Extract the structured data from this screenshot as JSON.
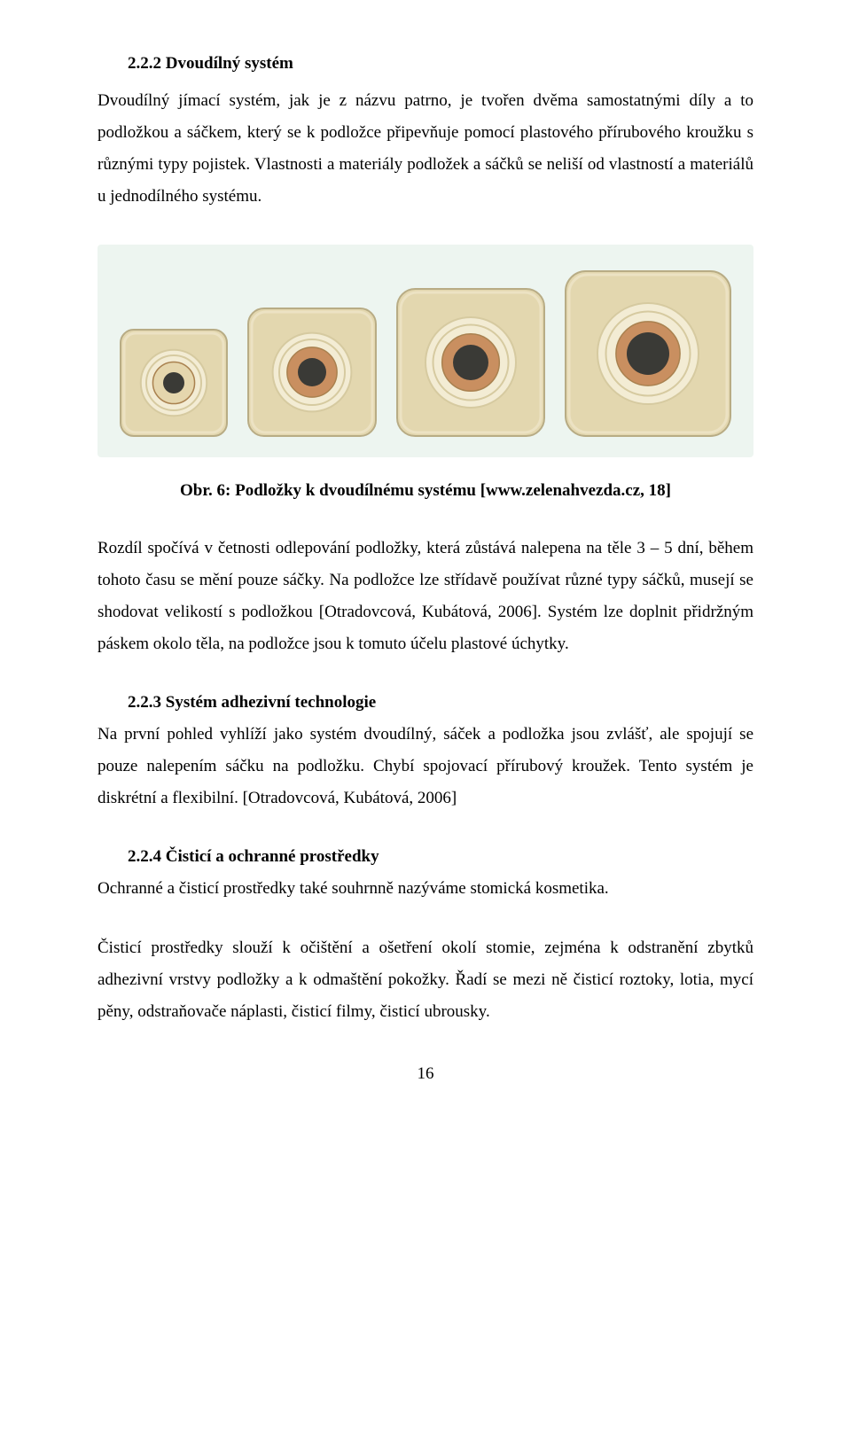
{
  "section_2_2_2": {
    "heading": "2.2.2   Dvoudílný systém",
    "para1": "Dvoudílný jímací systém, jak je z názvu patrno, je tvořen dvěma samostatnými díly a to podložkou a sáčkem, který se k podložce připevňuje pomocí plastového přírubového kroužku s různými typy pojistek. Vlastnosti a materiály podložek a sáčků se neliší od vlastností a materiálů u jednodílného systému."
  },
  "figure": {
    "caption": "Obr. 6: Podložky k dvoudílnému systému [www.zelenahvezda.cz, 18]",
    "background": "#edf5f0",
    "plate_fill": "#e3d7af",
    "plate_stroke": "#b8ac85",
    "ring_fill": "#f3ecd4",
    "ring_stroke": "#d6caa0",
    "center_fill_flat": "#e5d6ad",
    "center_fill_convex": "#c98f60",
    "plates": [
      {
        "size": 124,
        "center": "flat",
        "hole_r": 12
      },
      {
        "size": 148,
        "center": "convex",
        "hole_r": 16
      },
      {
        "size": 170,
        "center": "convex",
        "hole_r": 20
      },
      {
        "size": 190,
        "center": "convex",
        "hole_r": 24
      }
    ]
  },
  "para_after_figure": "Rozdíl spočívá v četnosti odlepování podložky, která zůstává nalepena na těle 3 – 5 dní, během tohoto času se mění pouze sáčky. Na podložce lze střídavě používat různé typy sáčků, musejí se shodovat velikostí s podložkou [Otradovcová, Kubátová, 2006]. Systém lze doplnit přidržným páskem okolo těla, na podložce jsou k tomuto účelu plastové úchytky.",
  "section_2_2_3": {
    "heading": "2.2.3   Systém adhezivní technologie",
    "para": "Na první pohled vyhlíží jako systém dvoudílný, sáček a podložka jsou zvlášť, ale spojují se pouze nalepením sáčku na podložku. Chybí spojovací přírubový kroužek. Tento systém je diskrétní a flexibilní. [Otradovcová, Kubátová, 2006]"
  },
  "section_2_2_4": {
    "heading": "2.2.4   Čisticí a ochranné prostředky",
    "para1": "Ochranné a čisticí prostředky také souhrnně nazýváme stomická kosmetika.",
    "para2": "Čisticí prostředky slouží k očištění a ošetření okolí stomie, zejména k odstranění zbytků adhezivní vrstvy podložky a k odmaštění pokožky. Řadí se mezi ně čisticí roztoky, lotia, mycí pěny, odstraňovače náplasti, čisticí filmy, čisticí ubrousky."
  },
  "page_number": "16"
}
